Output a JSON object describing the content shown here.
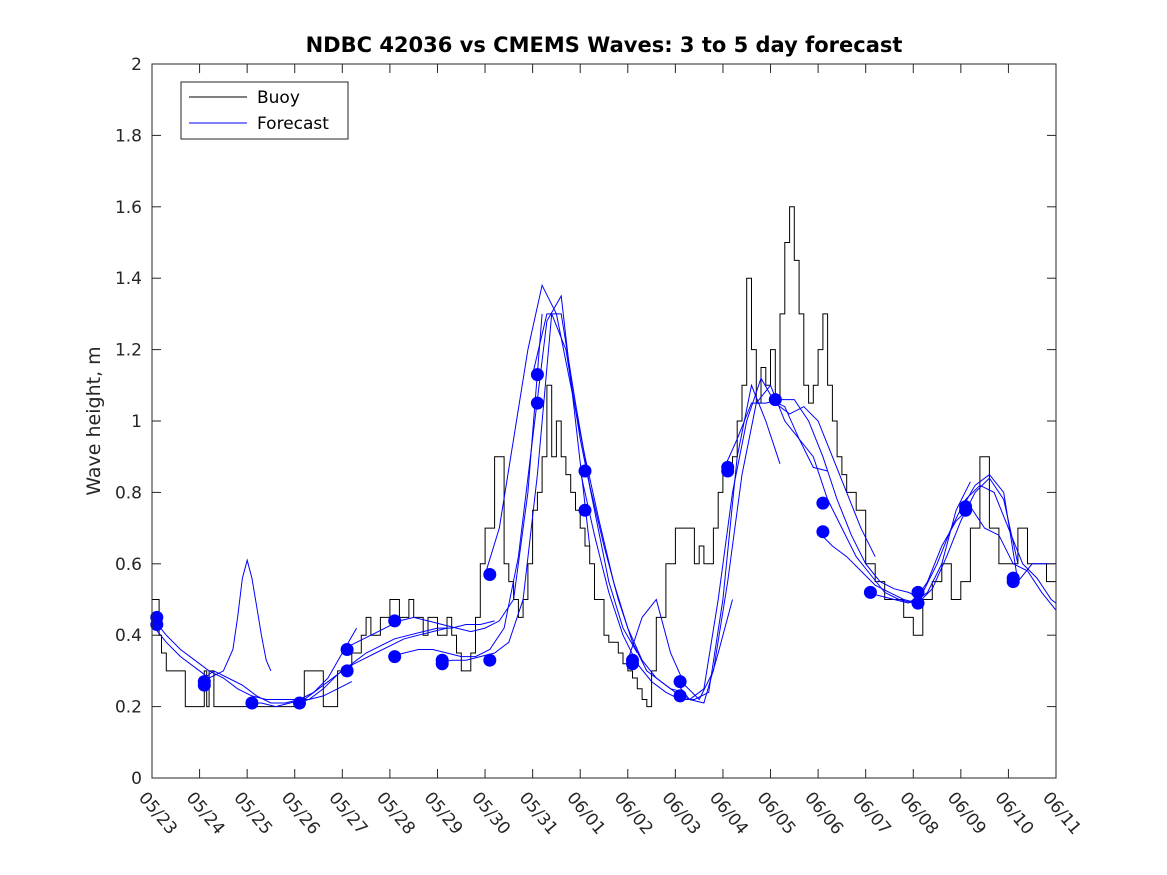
{
  "chart_data": {
    "type": "line",
    "title": "NDBC 42036 vs CMEMS Waves: 3 to 5 day forecast",
    "xlabel": "",
    "ylabel": "Wave height, m",
    "x_tick_labels": [
      "05/23",
      "05/24",
      "05/25",
      "05/26",
      "05/27",
      "05/28",
      "05/29",
      "05/30",
      "05/31",
      "06/01",
      "06/02",
      "06/03",
      "06/04",
      "06/05",
      "06/06",
      "06/07",
      "06/08",
      "06/09",
      "06/10",
      "06/11"
    ],
    "y_tick_labels": [
      "0",
      "0.2",
      "0.4",
      "0.6",
      "0.8",
      "1",
      "1.2",
      "1.4",
      "1.6",
      "1.8",
      "2"
    ],
    "xlim": [
      0,
      19
    ],
    "ylim": [
      0,
      2
    ],
    "grid": false,
    "legend": {
      "position": "top-left",
      "entries": [
        "Buoy",
        "Forecast"
      ]
    },
    "colors": {
      "buoy": "#000000",
      "forecast": "#0000ff",
      "axes": "#262626"
    },
    "buoy": {
      "name": "Buoy",
      "x": [
        0,
        0.15,
        0.2,
        0.3,
        0.6,
        0.7,
        0.95,
        1.1,
        1.15,
        1.2,
        1.3,
        1.5,
        1.6,
        1.8,
        2,
        2.2,
        2.5,
        2.8,
        3,
        3.2,
        3.6,
        3.8,
        3.9,
        4,
        4.2,
        4.4,
        4.5,
        4.6,
        4.8,
        5,
        5.2,
        5.4,
        5.5,
        5.7,
        5.8,
        6,
        6.2,
        6.3,
        6.4,
        6.5,
        6.6,
        6.7,
        6.8,
        6.9,
        7,
        7.2,
        7.4,
        7.5,
        7.6,
        7.7,
        7.8,
        7.9,
        8,
        8.1,
        8.2,
        8.3,
        8.4,
        8.5,
        8.6,
        8.7,
        8.8,
        8.9,
        9,
        9.1,
        9.2,
        9.3,
        9.5,
        9.6,
        9.8,
        9.9,
        10,
        10.1,
        10.2,
        10.3,
        10.4,
        10.5,
        10.6,
        10.8,
        11,
        11.2,
        11.4,
        11.5,
        11.6,
        11.8,
        11.9,
        12,
        12.2,
        12.3,
        12.4,
        12.5,
        12.6,
        12.7,
        12.8,
        12.9,
        13,
        13.1,
        13.2,
        13.3,
        13.4,
        13.5,
        13.6,
        13.7,
        13.8,
        13.9,
        14,
        14.1,
        14.2,
        14.3,
        14.4,
        14.5,
        14.6,
        14.8,
        15,
        15.2,
        15.4,
        15.6,
        15.8,
        16,
        16.2,
        16.4,
        16.6,
        16.8,
        17,
        17.2,
        17.4,
        17.6,
        17.8,
        18,
        18.2,
        18.4,
        18.6,
        18.8,
        19
      ],
      "y": [
        0.5,
        0.4,
        0.35,
        0.3,
        0.3,
        0.2,
        0.2,
        0.3,
        0.2,
        0.3,
        0.2,
        0.2,
        0.2,
        0.2,
        0.2,
        0.2,
        0.2,
        0.2,
        0.2,
        0.3,
        0.2,
        0.2,
        0.3,
        0.3,
        0.35,
        0.4,
        0.45,
        0.4,
        0.45,
        0.5,
        0.45,
        0.5,
        0.45,
        0.4,
        0.45,
        0.4,
        0.45,
        0.4,
        0.35,
        0.3,
        0.3,
        0.35,
        0.45,
        0.6,
        0.7,
        0.9,
        0.6,
        0.55,
        0.5,
        0.45,
        0.5,
        0.6,
        0.75,
        0.8,
        0.9,
        1.1,
        0.9,
        1.0,
        0.9,
        0.85,
        0.8,
        0.75,
        0.7,
        0.65,
        0.6,
        0.5,
        0.4,
        0.38,
        0.35,
        0.32,
        0.3,
        0.28,
        0.25,
        0.22,
        0.2,
        0.3,
        0.45,
        0.6,
        0.7,
        0.7,
        0.6,
        0.65,
        0.6,
        0.7,
        0.8,
        0.85,
        0.9,
        1.0,
        1.1,
        1.4,
        1.2,
        1.05,
        1.15,
        1.1,
        1.2,
        1.05,
        1.3,
        1.5,
        1.6,
        1.45,
        1.3,
        1.1,
        1.05,
        1.1,
        1.2,
        1.3,
        1.1,
        1.0,
        0.9,
        0.85,
        0.8,
        0.75,
        0.6,
        0.55,
        0.5,
        0.5,
        0.45,
        0.4,
        0.5,
        0.55,
        0.6,
        0.5,
        0.55,
        0.7,
        0.9,
        0.7,
        0.6,
        0.6,
        0.7,
        0.6,
        0.6,
        0.55,
        0.6
      ]
    },
    "forecast_segments": [
      {
        "x": [
          0,
          0.3,
          0.6,
          0.9,
          1.2,
          1.5,
          1.8,
          2.1,
          2.4,
          2.7,
          3.0,
          3.3,
          3.6,
          3.9,
          4.2
        ],
        "y": [
          0.45,
          0.4,
          0.36,
          0.33,
          0.3,
          0.28,
          0.25,
          0.23,
          0.22,
          0.22,
          0.22,
          0.22,
          0.23,
          0.25,
          0.27
        ]
      },
      {
        "x": [
          0,
          0.3,
          0.6,
          0.9,
          1.2,
          1.5,
          1.7,
          1.8,
          1.9,
          2.0,
          2.1,
          2.2,
          2.3,
          2.4,
          2.5
        ],
        "y": [
          0.43,
          0.38,
          0.34,
          0.31,
          0.28,
          0.3,
          0.36,
          0.45,
          0.56,
          0.61,
          0.56,
          0.48,
          0.4,
          0.33,
          0.3
        ]
      },
      {
        "x": [
          1,
          1.3,
          1.6,
          1.9,
          2.2,
          2.5,
          2.8,
          3.1,
          3.4,
          3.7,
          4.0,
          4.3
        ],
        "y": [
          0.27,
          0.3,
          0.28,
          0.26,
          0.23,
          0.21,
          0.21,
          0.22,
          0.24,
          0.28,
          0.35,
          0.42
        ]
      },
      {
        "x": [
          2,
          2.3,
          2.6,
          2.9,
          3.2,
          3.5,
          3.8,
          4.1,
          4.4,
          4.7,
          5.0,
          5.3,
          5.6,
          5.9,
          6.2
        ],
        "y": [
          0.21,
          0.21,
          0.2,
          0.21,
          0.22,
          0.25,
          0.28,
          0.31,
          0.33,
          0.35,
          0.37,
          0.39,
          0.4,
          0.41,
          0.42
        ]
      },
      {
        "x": [
          3,
          3.3,
          3.6,
          3.9,
          4.2,
          4.5,
          4.8,
          5.1,
          5.4,
          5.7,
          6.0,
          6.3,
          6.6,
          6.9,
          7.2
        ],
        "y": [
          0.21,
          0.22,
          0.25,
          0.29,
          0.32,
          0.35,
          0.37,
          0.39,
          0.4,
          0.41,
          0.42,
          0.42,
          0.43,
          0.43,
          0.44
        ]
      },
      {
        "x": [
          4,
          4.3,
          4.6,
          4.9,
          5.2,
          5.5,
          5.8,
          6.1,
          6.4,
          6.7,
          7.0,
          7.3,
          7.6,
          7.9,
          8.2
        ],
        "y": [
          0.36,
          0.38,
          0.4,
          0.42,
          0.44,
          0.45,
          0.44,
          0.43,
          0.42,
          0.41,
          0.42,
          0.44,
          0.5,
          0.8,
          1.3
        ]
      },
      {
        "x": [
          5,
          5.3,
          5.6,
          5.9,
          6.2,
          6.5,
          6.8,
          7.1,
          7.4,
          7.7,
          8.0,
          8.3,
          8.6,
          8.9,
          9.2
        ],
        "y": [
          0.34,
          0.35,
          0.36,
          0.36,
          0.35,
          0.34,
          0.34,
          0.36,
          0.42,
          0.62,
          0.95,
          1.28,
          1.35,
          1.0,
          0.65
        ]
      },
      {
        "x": [
          6,
          6.3,
          6.6,
          6.9,
          7.2,
          7.5,
          7.8,
          8.1,
          8.4,
          8.7,
          9.0,
          9.3,
          9.6,
          9.9,
          10.2
        ],
        "y": [
          0.32,
          0.33,
          0.33,
          0.34,
          0.35,
          0.38,
          0.5,
          0.85,
          1.3,
          1.2,
          0.95,
          0.75,
          0.55,
          0.42,
          0.35
        ]
      },
      {
        "x": [
          7,
          7.3,
          7.6,
          7.9,
          8.2,
          8.5,
          8.8,
          9.1,
          9.4,
          9.7,
          10.0,
          10.3,
          10.6,
          10.9,
          11.2
        ],
        "y": [
          0.57,
          0.7,
          0.95,
          1.2,
          1.38,
          1.3,
          1.1,
          0.9,
          0.72,
          0.55,
          0.42,
          0.33,
          0.28,
          0.25,
          0.24
        ]
      },
      {
        "x": [
          8,
          8.3,
          8.6,
          8.9,
          9.2,
          9.5,
          9.8,
          10.1,
          10.4,
          10.7,
          11.0,
          11.3,
          11.6,
          11.9,
          12.2
        ],
        "y": [
          1.13,
          1.3,
          1.3,
          1.05,
          0.82,
          0.65,
          0.5,
          0.38,
          0.3,
          0.27,
          0.24,
          0.22,
          0.21,
          0.35,
          0.5
        ]
      },
      {
        "x": [
          9,
          9.3,
          9.6,
          9.9,
          10.2,
          10.5,
          10.8,
          11.1,
          11.4,
          11.7,
          12.0,
          12.3,
          12.6,
          12.9,
          13.2
        ],
        "y": [
          0.86,
          0.68,
          0.52,
          0.4,
          0.32,
          0.27,
          0.24,
          0.22,
          0.22,
          0.24,
          0.5,
          0.9,
          1.1,
          1.0,
          0.88
        ]
      },
      {
        "x": [
          10,
          10.3,
          10.6,
          10.9,
          11.2,
          11.5,
          11.8,
          12.1,
          12.4,
          12.7,
          13.0,
          13.3,
          13.6,
          13.9,
          14.2
        ],
        "y": [
          0.33,
          0.45,
          0.5,
          0.35,
          0.26,
          0.22,
          0.3,
          0.55,
          0.85,
          1.05,
          1.1,
          1.0,
          0.95,
          0.87,
          0.86
        ]
      },
      {
        "x": [
          11,
          11.3,
          11.6,
          11.9,
          12.2,
          12.5,
          12.8,
          13.1,
          13.4,
          13.7,
          14.0,
          14.3,
          14.6,
          14.9,
          15.2
        ],
        "y": [
          0.27,
          0.22,
          0.25,
          0.5,
          0.8,
          1.0,
          1.12,
          1.05,
          1.02,
          1.04,
          1.0,
          0.9,
          0.8,
          0.7,
          0.62
        ]
      },
      {
        "x": [
          12,
          12.3,
          12.6,
          12.9,
          13.2,
          13.5,
          13.8,
          14.1,
          14.4,
          14.7,
          15.0,
          15.3,
          15.6,
          15.9,
          16.2
        ],
        "y": [
          0.86,
          0.95,
          1.05,
          1.05,
          1.06,
          1.06,
          1.0,
          0.9,
          0.78,
          0.68,
          0.6,
          0.55,
          0.53,
          0.52,
          0.5
        ]
      },
      {
        "x": [
          13,
          13.3,
          13.6,
          13.9,
          14.2,
          14.5,
          14.8,
          15.1,
          15.4,
          15.7,
          16.0,
          16.3,
          16.6,
          16.9,
          17.2
        ],
        "y": [
          1.06,
          1.04,
          0.95,
          0.9,
          0.78,
          0.7,
          0.62,
          0.57,
          0.52,
          0.5,
          0.49,
          0.52,
          0.6,
          0.75,
          0.83
        ]
      },
      {
        "x": [
          14,
          14.3,
          14.6,
          14.9,
          15.2,
          15.5,
          15.8,
          16.1,
          16.4,
          16.7,
          17.0,
          17.3,
          17.6,
          17.9,
          18.2
        ],
        "y": [
          0.69,
          0.65,
          0.62,
          0.58,
          0.54,
          0.52,
          0.5,
          0.49,
          0.53,
          0.62,
          0.72,
          0.8,
          0.84,
          0.78,
          0.6
        ]
      },
      {
        "x": [
          15,
          15.3,
          15.6,
          15.9,
          16.2,
          16.5,
          16.8,
          17.1,
          17.4,
          17.7,
          18.0,
          18.3,
          18.6,
          18.9,
          19.0
        ],
        "y": [
          0.52,
          0.51,
          0.5,
          0.49,
          0.52,
          0.6,
          0.7,
          0.78,
          0.82,
          0.8,
          0.7,
          0.6,
          0.56,
          0.5,
          0.49
        ]
      },
      {
        "x": [
          16,
          16.3,
          16.6,
          16.9,
          17.2,
          17.5,
          17.8,
          18.1,
          18.4,
          18.7,
          19.0
        ],
        "y": [
          0.49,
          0.55,
          0.65,
          0.72,
          0.76,
          0.7,
          0.68,
          0.6,
          0.58,
          0.52,
          0.47
        ]
      },
      {
        "x": [
          17,
          17.3,
          17.6,
          17.9,
          18.2,
          18.5,
          18.8,
          19.0
        ],
        "y": [
          0.75,
          0.82,
          0.85,
          0.8,
          0.55,
          0.6,
          0.6,
          0.6
        ]
      }
    ],
    "forecast_points": {
      "x": [
        0.1,
        0.1,
        1.1,
        1.1,
        2.1,
        3.1,
        4.1,
        4.1,
        5.1,
        5.1,
        6.1,
        6.1,
        7.1,
        7.1,
        8.1,
        8.1,
        9.1,
        9.1,
        10.1,
        10.1,
        11.1,
        11.1,
        12.1,
        12.1,
        13.1,
        14.1,
        14.1,
        15.1,
        16.1,
        16.1,
        17.1,
        17.1,
        18.1,
        18.1
      ],
      "y": [
        0.45,
        0.43,
        0.27,
        0.26,
        0.21,
        0.21,
        0.36,
        0.3,
        0.44,
        0.34,
        0.33,
        0.32,
        0.57,
        0.33,
        1.13,
        1.05,
        0.86,
        0.75,
        0.33,
        0.32,
        0.27,
        0.23,
        0.87,
        0.86,
        1.06,
        0.77,
        0.69,
        0.52,
        0.52,
        0.49,
        0.76,
        0.75,
        0.56,
        0.55
      ]
    }
  }
}
